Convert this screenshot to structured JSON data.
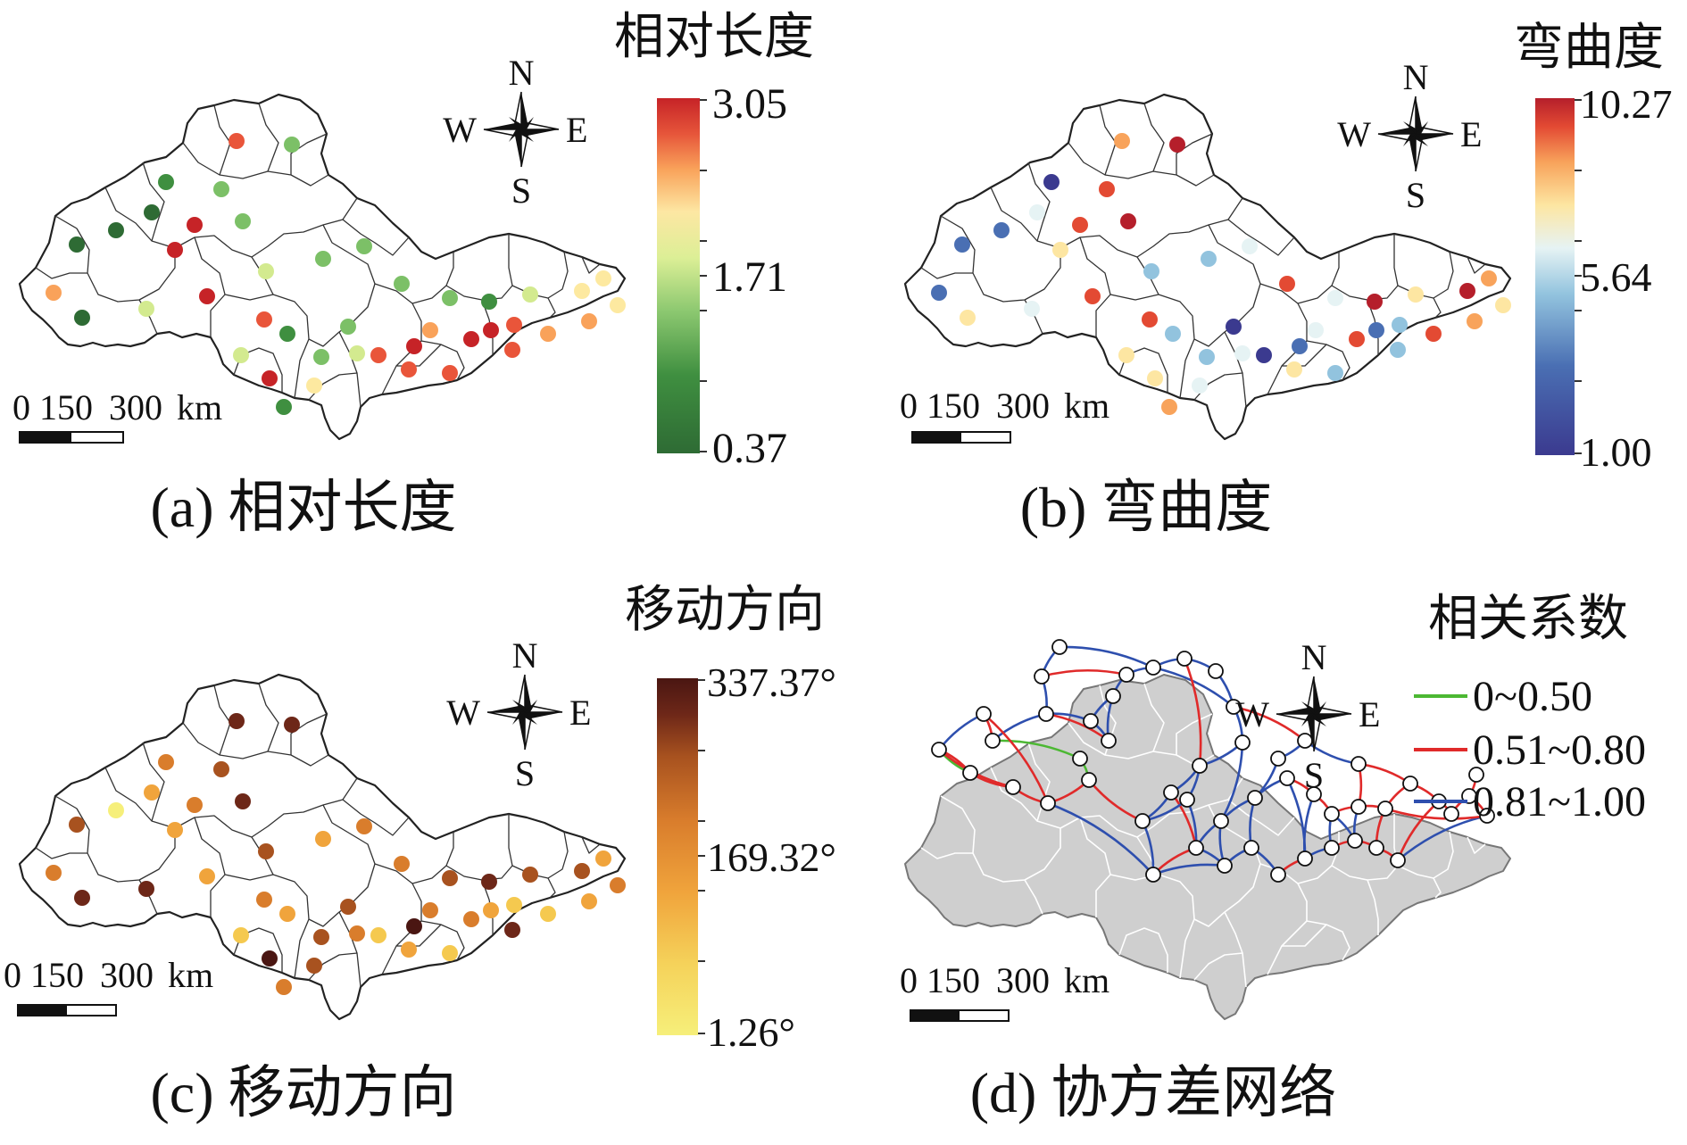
{
  "panels": [
    {
      "id": "a",
      "caption": "(a) 相对长度",
      "legend": {
        "title": "相对长度",
        "max_label": "3.05",
        "mid_label": "1.71",
        "min_label": "0.37",
        "min": 0.37,
        "max": 3.05,
        "colormap": "RdYlGn-reversed"
      },
      "compass": {
        "n": "N",
        "s": "S",
        "e": "E",
        "w": "W"
      },
      "scalebar": {
        "labels": [
          "0",
          "150",
          "300",
          "km"
        ]
      }
    },
    {
      "id": "b",
      "caption": "(b) 弯曲度",
      "legend": {
        "title": "弯曲度",
        "max_label": "10.27",
        "mid_label": "5.64",
        "min_label": "1.00",
        "min": 1.0,
        "max": 10.27,
        "colormap": "RdYlBu-reversed"
      },
      "compass": {
        "n": "N",
        "s": "S",
        "e": "E",
        "w": "W"
      },
      "scalebar": {
        "labels": [
          "0",
          "150",
          "300",
          "km"
        ]
      }
    },
    {
      "id": "c",
      "caption": "(c) 移动方向",
      "legend": {
        "title": "移动方向",
        "max_label": "337.37°",
        "mid_label": "169.32°",
        "min_label": "1.26°",
        "min": 1.26,
        "max": 337.37,
        "colormap": "YlOrBr"
      },
      "compass": {
        "n": "N",
        "s": "S",
        "e": "E",
        "w": "W"
      },
      "scalebar": {
        "labels": [
          "0",
          "150",
          "300",
          "km"
        ]
      }
    },
    {
      "id": "d",
      "caption": "(d) 协方差网络",
      "legend": {
        "title": "相关系数",
        "items": [
          {
            "label": "0~0.50",
            "color": "#4cb833"
          },
          {
            "label": "0.51~0.80",
            "color": "#e02a2a"
          },
          {
            "label": "0.81~1.00",
            "color": "#2e4fae"
          }
        ]
      },
      "compass": {
        "n": "N",
        "s": "S",
        "e": "E",
        "w": "W"
      },
      "scalebar": {
        "labels": [
          "0",
          "150",
          "300",
          "km"
        ]
      }
    }
  ],
  "colors": {
    "ramp_a": [
      "#2e6b34",
      "#3f8f40",
      "#7cc067",
      "#d3ea8f",
      "#fde9a0",
      "#f9a25a",
      "#e9553a",
      "#c62327"
    ],
    "ramp_b": [
      "#3b3a8f",
      "#4a6fb3",
      "#92c3de",
      "#e6f3f4",
      "#fde6a2",
      "#f8a35b",
      "#e34a33",
      "#b51f2b"
    ],
    "ramp_c": [
      "#f6ef7a",
      "#f5c94f",
      "#f0a43c",
      "#d97d2c",
      "#a8521f",
      "#6d2718",
      "#4a1612"
    ]
  }
}
